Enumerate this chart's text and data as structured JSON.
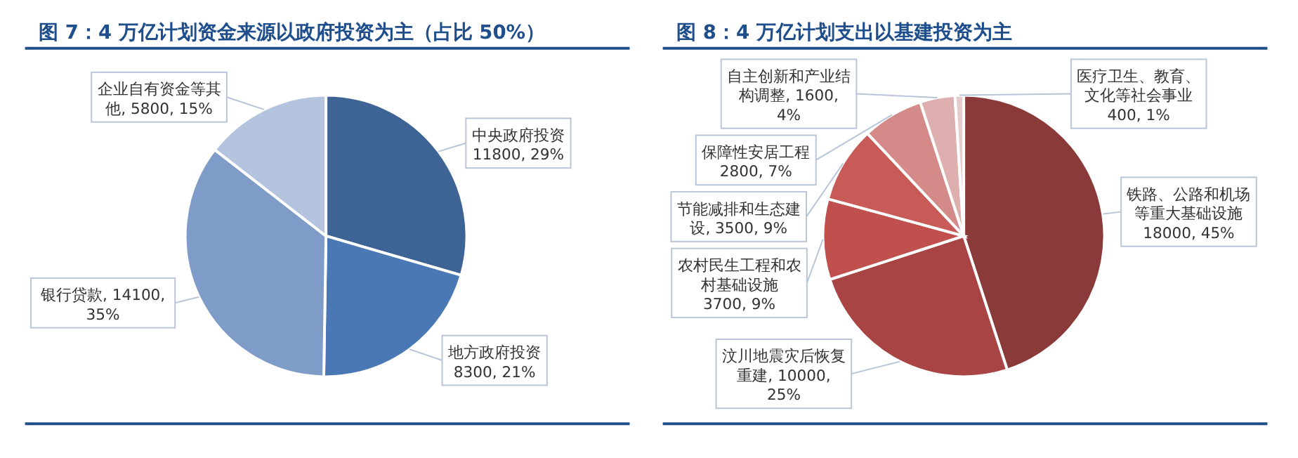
{
  "chart_data": [
    {
      "type": "pie",
      "title": "图 7：4 万亿计划资金来源以政府投资为主（占比 50%）",
      "categories": [
        "中央政府投资",
        "地方政府投资",
        "银行贷款",
        "企业自有资金等其他"
      ],
      "values": [
        11800,
        8300,
        14100,
        5800
      ],
      "value_labels": [
        "11800, 29%",
        "8300, 21%",
        "14100, 35%",
        "5800, 15%"
      ],
      "colors": [
        "#3e6496",
        "#4a78b4",
        "#7f9cc9",
        "#b4c3de"
      ],
      "legend": false
    },
    {
      "type": "pie",
      "title": "图 8：4 万亿计划支出以基建投资为主",
      "categories": [
        "铁路、公路和机场等重大基础设施",
        "汶川地震灾后恢复重建",
        "农村民生工程和农村基础设施",
        "节能减排和生态建设",
        "保障性安居工程",
        "自主创新和产业结构调整",
        "医疗卫生、教育、文化等社会事业"
      ],
      "values": [
        18000,
        10000,
        3700,
        3500,
        2800,
        1600,
        400
      ],
      "value_labels": [
        "18000, 45%",
        "10000, 25%",
        "3700, 9%",
        "3500, 9%",
        "2800, 7%",
        "1600, 4%",
        "400, 1%"
      ],
      "colors": [
        "#8b3a3a",
        "#a84444",
        "#c0504d",
        "#c85a57",
        "#d48a88",
        "#ddb0af",
        "#e6cccc"
      ],
      "legend": false
    }
  ]
}
